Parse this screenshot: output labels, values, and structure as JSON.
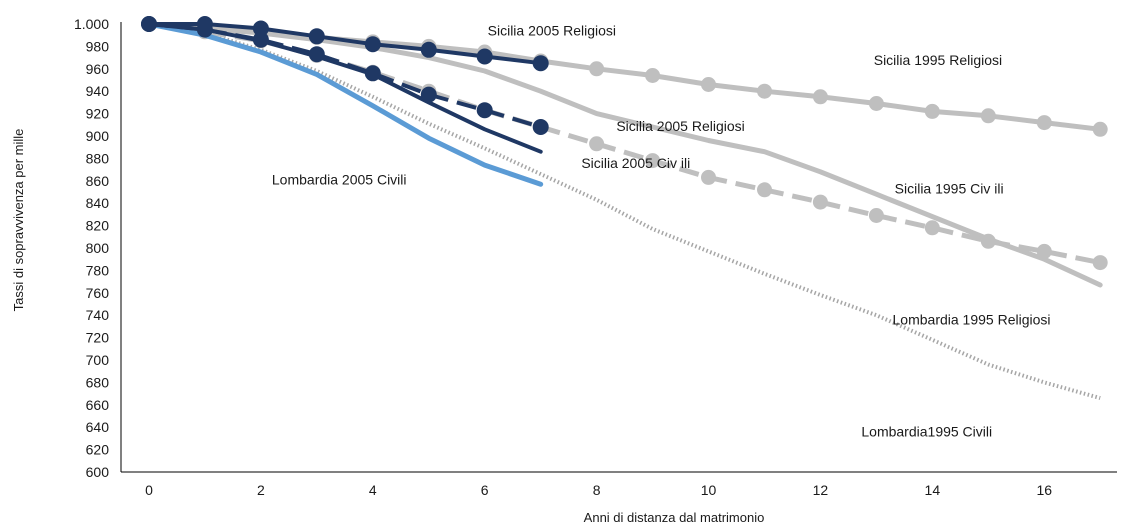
{
  "chart_data": {
    "type": "line",
    "title": "",
    "xlabel": "Anni di distanza dal matrimonio",
    "ylabel": "Tassi di sopravvivenza per mille",
    "xlim": [
      -0.5,
      17.3
    ],
    "ylim": [
      600,
      1000
    ],
    "x_ticks": [
      0,
      2,
      4,
      6,
      8,
      10,
      12,
      14,
      16
    ],
    "x_tick_labels": [
      "0",
      "2",
      "4",
      "6",
      "8",
      "10",
      "12",
      "14",
      "16"
    ],
    "y_ticks": [
      600,
      620,
      640,
      660,
      680,
      700,
      720,
      740,
      760,
      780,
      800,
      820,
      840,
      860,
      880,
      900,
      920,
      940,
      960,
      980,
      1000
    ],
    "y_tick_labels": [
      "600",
      "620",
      "640",
      "660",
      "680",
      "700",
      "720",
      "740",
      "760",
      "780",
      "800",
      "820",
      "840",
      "860",
      "880",
      "900",
      "920",
      "940",
      "960",
      "980",
      "1.000"
    ],
    "grid": false,
    "legend": "none",
    "colors": {
      "light_gray": "#bfbfbf",
      "dotted_gray": "#a6a6a6",
      "dark_navy": "#1f3864",
      "light_blue": "#5b9bd5",
      "axis": "#000000"
    },
    "series": [
      {
        "name": "Sicilia 1995 Religiosi",
        "style": "solid-markers",
        "color": "#bfbfbf",
        "x": [
          0,
          1,
          2,
          3,
          4,
          5,
          6,
          7,
          8,
          9,
          10,
          11,
          12,
          13,
          14,
          15,
          16,
          17
        ],
        "values": [
          1000,
          997,
          993,
          988,
          984,
          980,
          975,
          967,
          960,
          954,
          946,
          940,
          935,
          929,
          922,
          918,
          912,
          906
        ]
      },
      {
        "name": "Sicilia 1995 Civ ili",
        "style": "solid",
        "color": "#bfbfbf",
        "x": [
          0,
          1,
          2,
          3,
          4,
          5,
          6,
          7,
          8,
          9,
          10,
          11,
          12,
          13,
          14,
          15,
          16,
          17
        ],
        "values": [
          1000,
          996,
          992,
          986,
          979,
          970,
          958,
          940,
          920,
          908,
          896,
          886,
          868,
          848,
          828,
          808,
          790,
          767
        ]
      },
      {
        "name": "Lombardia 1995 Religiosi",
        "style": "dashed-markers",
        "color": "#bfbfbf",
        "x": [
          0,
          1,
          2,
          3,
          4,
          5,
          6,
          7,
          8,
          9,
          10,
          11,
          12,
          13,
          14,
          15,
          16,
          17
        ],
        "values": [
          1000,
          993,
          985,
          972,
          957,
          940,
          923,
          908,
          893,
          878,
          863,
          852,
          841,
          829,
          818,
          806,
          797,
          787
        ]
      },
      {
        "name": "Lombardia1995 Civili",
        "style": "dotted",
        "color": "#a6a6a6",
        "x": [
          0,
          1,
          2,
          3,
          4,
          5,
          6,
          7,
          8,
          9,
          10,
          11,
          12,
          13,
          14,
          15,
          16,
          17
        ],
        "values": [
          1000,
          992,
          977,
          958,
          935,
          911,
          889,
          866,
          843,
          817,
          797,
          777,
          758,
          740,
          718,
          696,
          680,
          666
        ]
      },
      {
        "name": "Sicilia 2005 Religiosi",
        "style": "solid-markers",
        "color": "#1f3864",
        "x": [
          0,
          1,
          2,
          3,
          4,
          5,
          6,
          7
        ],
        "values": [
          1000,
          1000,
          996,
          989,
          982,
          977,
          971,
          965
        ]
      },
      {
        "name": "Sicilia 2005 Religiosi",
        "style": "dashed-markers",
        "color": "#1f3864",
        "x": [
          0,
          1,
          2,
          3,
          4,
          5,
          6,
          7
        ],
        "values": [
          1000,
          995,
          986,
          973,
          956,
          937,
          923,
          908
        ]
      },
      {
        "name": "Sicilia 2005 Civ ili",
        "style": "solid",
        "color": "#1f3864",
        "x": [
          0,
          1,
          2,
          3,
          4,
          5,
          6,
          7
        ],
        "values": [
          1000,
          995,
          985,
          971,
          955,
          930,
          906,
          886
        ]
      },
      {
        "name": "Lombardia 2005 Civili",
        "style": "solid",
        "color": "#5b9bd5",
        "x": [
          0,
          1,
          2,
          3,
          4,
          5,
          6,
          7
        ],
        "values": [
          1000,
          990,
          975,
          955,
          927,
          898,
          874,
          857
        ]
      }
    ],
    "annotations": [
      {
        "text": "Sicilia 2005 Religiosi",
        "x": 7.2,
        "y": 994
      },
      {
        "text": "Sicilia 1995 Religiosi",
        "x": 14.1,
        "y": 968
      },
      {
        "text": "Sicilia 2005 Religiosi",
        "x": 9.5,
        "y": 909
      },
      {
        "text": "Sicilia 2005 Civ ili",
        "x": 8.7,
        "y": 876
      },
      {
        "text": "Lombardia 2005 Civili",
        "x": 3.4,
        "y": 861
      },
      {
        "text": "Sicilia 1995 Civ ili",
        "x": 14.3,
        "y": 853
      },
      {
        "text": "Lombardia 1995 Religiosi",
        "x": 14.7,
        "y": 736
      },
      {
        "text": "Lombardia1995 Civili",
        "x": 13.9,
        "y": 636
      }
    ]
  }
}
